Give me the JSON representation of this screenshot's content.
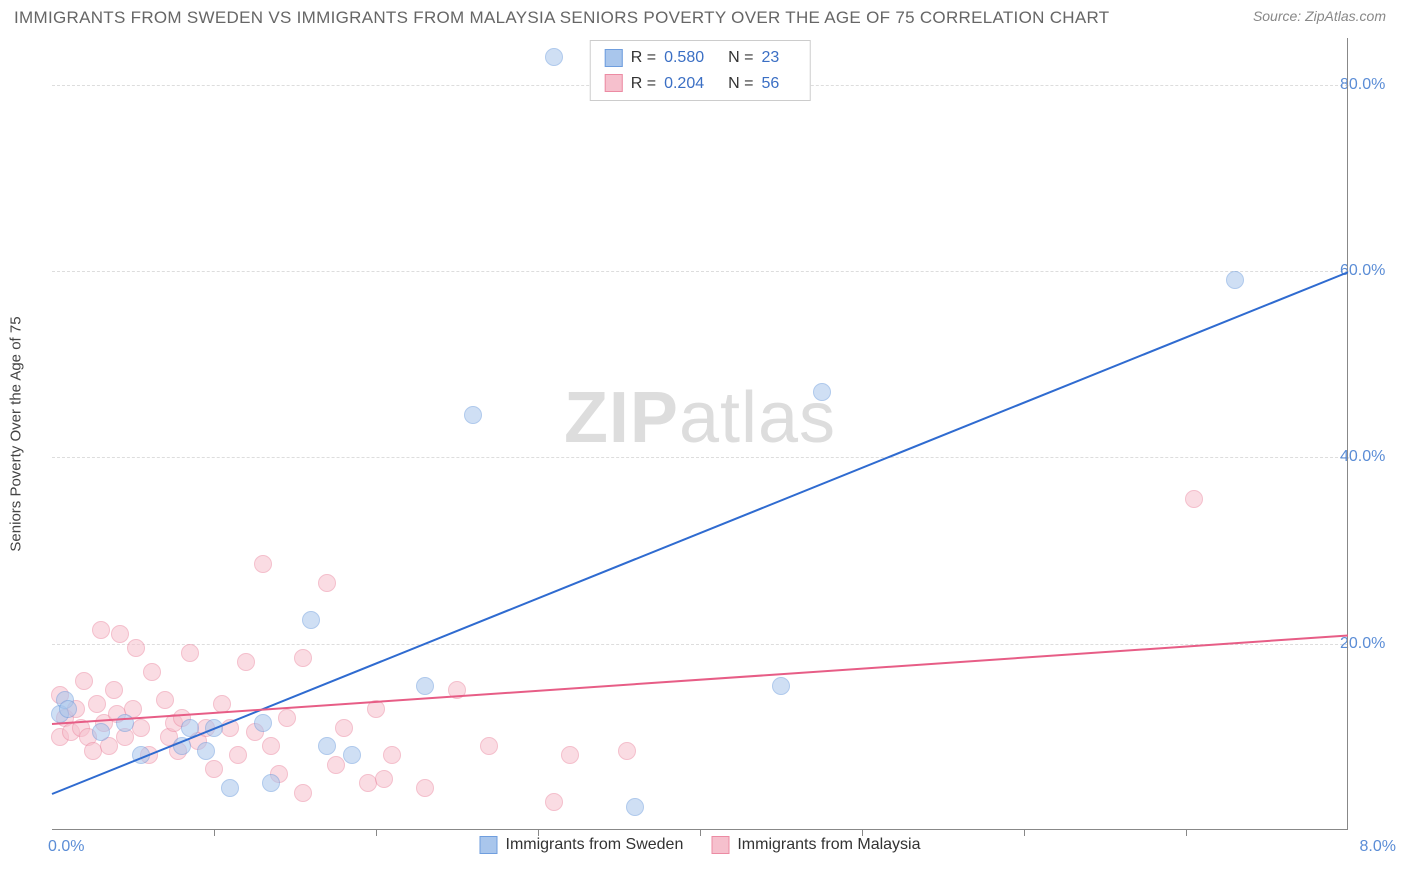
{
  "title": "IMMIGRANTS FROM SWEDEN VS IMMIGRANTS FROM MALAYSIA SENIORS POVERTY OVER THE AGE OF 75 CORRELATION CHART",
  "source": "Source: ZipAtlas.com",
  "ylabel": "Seniors Poverty Over the Age of 75",
  "watermark_a": "ZIP",
  "watermark_b": "atlas",
  "chart": {
    "type": "scatter",
    "background_color": "#ffffff",
    "grid_color": "#dddddd",
    "axis_color": "#888888",
    "tick_label_color": "#5b8dd6",
    "xlim": [
      0,
      8
    ],
    "ylim": [
      0,
      85
    ],
    "xticks": [
      1,
      2,
      3,
      4,
      5,
      6,
      7
    ],
    "yticks": [
      20,
      40,
      60,
      80
    ],
    "xlabel_min": "0.0%",
    "xlabel_max": "8.0%",
    "ytick_labels": {
      "20": "20.0%",
      "40": "40.0%",
      "60": "60.0%",
      "80": "80.0%"
    },
    "marker_radius": 9,
    "marker_opacity": 0.55,
    "line_width": 2,
    "series": [
      {
        "id": "sweden",
        "label": "Immigrants from Sweden",
        "color_fill": "#a9c6ec",
        "color_stroke": "#6f9ede",
        "line_color": "#2f6bd0",
        "R": "0.580",
        "N": "23",
        "trend": {
          "x1": 0.0,
          "y1": 4.0,
          "x2": 8.0,
          "y2": 60.0
        },
        "points": [
          {
            "x": 0.05,
            "y": 12.5
          },
          {
            "x": 0.08,
            "y": 14.0
          },
          {
            "x": 0.1,
            "y": 13.0
          },
          {
            "x": 0.3,
            "y": 10.5
          },
          {
            "x": 0.45,
            "y": 11.5
          },
          {
            "x": 0.55,
            "y": 8.0
          },
          {
            "x": 0.8,
            "y": 9.0
          },
          {
            "x": 0.85,
            "y": 11.0
          },
          {
            "x": 0.95,
            "y": 8.5
          },
          {
            "x": 1.0,
            "y": 11.0
          },
          {
            "x": 1.1,
            "y": 4.5
          },
          {
            "x": 1.3,
            "y": 11.5
          },
          {
            "x": 1.35,
            "y": 5.0
          },
          {
            "x": 1.6,
            "y": 22.5
          },
          {
            "x": 1.7,
            "y": 9.0
          },
          {
            "x": 1.85,
            "y": 8.0
          },
          {
            "x": 2.3,
            "y": 15.5
          },
          {
            "x": 2.6,
            "y": 44.5
          },
          {
            "x": 3.1,
            "y": 83.0
          },
          {
            "x": 3.6,
            "y": 2.5
          },
          {
            "x": 4.5,
            "y": 15.5
          },
          {
            "x": 4.75,
            "y": 47.0
          },
          {
            "x": 7.3,
            "y": 59.0
          }
        ]
      },
      {
        "id": "malaysia",
        "label": "Immigrants from Malaysia",
        "color_fill": "#f6c0cd",
        "color_stroke": "#ec8ba3",
        "line_color": "#e75d86",
        "R": "0.204",
        "N": "56",
        "trend": {
          "x1": 0.0,
          "y1": 11.5,
          "x2": 8.0,
          "y2": 21.0
        },
        "points": [
          {
            "x": 0.05,
            "y": 10.0
          },
          {
            "x": 0.05,
            "y": 14.5
          },
          {
            "x": 0.08,
            "y": 12.0
          },
          {
            "x": 0.12,
            "y": 10.5
          },
          {
            "x": 0.15,
            "y": 13.0
          },
          {
            "x": 0.18,
            "y": 11.0
          },
          {
            "x": 0.2,
            "y": 16.0
          },
          {
            "x": 0.22,
            "y": 10.0
          },
          {
            "x": 0.25,
            "y": 8.5
          },
          {
            "x": 0.28,
            "y": 13.5
          },
          {
            "x": 0.3,
            "y": 21.5
          },
          {
            "x": 0.32,
            "y": 11.5
          },
          {
            "x": 0.35,
            "y": 9.0
          },
          {
            "x": 0.38,
            "y": 15.0
          },
          {
            "x": 0.4,
            "y": 12.5
          },
          {
            "x": 0.42,
            "y": 21.0
          },
          {
            "x": 0.45,
            "y": 10.0
          },
          {
            "x": 0.5,
            "y": 13.0
          },
          {
            "x": 0.52,
            "y": 19.5
          },
          {
            "x": 0.55,
            "y": 11.0
          },
          {
            "x": 0.6,
            "y": 8.0
          },
          {
            "x": 0.62,
            "y": 17.0
          },
          {
            "x": 0.7,
            "y": 14.0
          },
          {
            "x": 0.72,
            "y": 10.0
          },
          {
            "x": 0.75,
            "y": 11.5
          },
          {
            "x": 0.78,
            "y": 8.5
          },
          {
            "x": 0.8,
            "y": 12.0
          },
          {
            "x": 0.85,
            "y": 19.0
          },
          {
            "x": 0.9,
            "y": 9.5
          },
          {
            "x": 0.95,
            "y": 11.0
          },
          {
            "x": 1.0,
            "y": 6.5
          },
          {
            "x": 1.05,
            "y": 13.5
          },
          {
            "x": 1.1,
            "y": 11.0
          },
          {
            "x": 1.15,
            "y": 8.0
          },
          {
            "x": 1.2,
            "y": 18.0
          },
          {
            "x": 1.25,
            "y": 10.5
          },
          {
            "x": 1.3,
            "y": 28.5
          },
          {
            "x": 1.35,
            "y": 9.0
          },
          {
            "x": 1.4,
            "y": 6.0
          },
          {
            "x": 1.45,
            "y": 12.0
          },
          {
            "x": 1.55,
            "y": 18.5
          },
          {
            "x": 1.55,
            "y": 4.0
          },
          {
            "x": 1.7,
            "y": 26.5
          },
          {
            "x": 1.75,
            "y": 7.0
          },
          {
            "x": 1.8,
            "y": 11.0
          },
          {
            "x": 1.95,
            "y": 5.0
          },
          {
            "x": 2.0,
            "y": 13.0
          },
          {
            "x": 2.05,
            "y": 5.5
          },
          {
            "x": 2.1,
            "y": 8.0
          },
          {
            "x": 2.3,
            "y": 4.5
          },
          {
            "x": 2.5,
            "y": 15.0
          },
          {
            "x": 2.7,
            "y": 9.0
          },
          {
            "x": 3.1,
            "y": 3.0
          },
          {
            "x": 3.2,
            "y": 8.0
          },
          {
            "x": 3.55,
            "y": 8.5
          },
          {
            "x": 7.05,
            "y": 35.5
          }
        ]
      }
    ]
  }
}
